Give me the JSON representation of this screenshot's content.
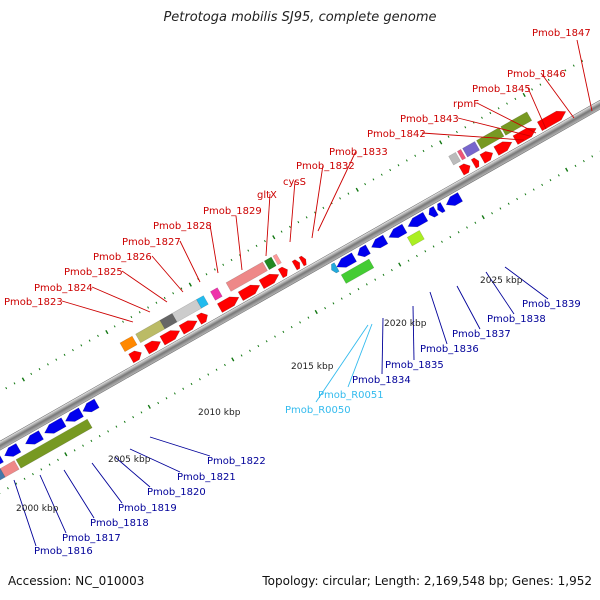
{
  "title": "Petrotoga mobilis SJ95, complete genome",
  "accession": "Accession: NC_010003",
  "summary": "Topology: circular; Length: 2,169,548 bp; Genes: 1,952",
  "colors": {
    "label_red": "#cc0000",
    "label_blue": "#000099",
    "label_cyan": "#33bbee",
    "forward_gene": "#ff0000",
    "reverse_gene": "#0000ee",
    "rna_gene": "#22aadd"
  },
  "scale_labels": [
    "2000 kbp",
    "2005 kbp",
    "2010 kbp",
    "2015 kbp",
    "2020 kbp",
    "2025 kbp"
  ],
  "top_labels": [
    "Pmob_1823",
    "Pmob_1824",
    "Pmob_1825",
    "Pmob_1826",
    "Pmob_1827",
    "Pmob_1828",
    "Pmob_1829",
    "gltX",
    "cysS",
    "Pmob_1832",
    "Pmob_1833",
    "Pmob_1842",
    "Pmob_1843",
    "rpmF",
    "Pmob_1845",
    "Pmob_1846",
    "Pmob_1847"
  ],
  "bottom_labels": [
    "Pmob_1816",
    "Pmob_1817",
    "Pmob_1818",
    "Pmob_1819",
    "Pmob_1820",
    "Pmob_1821",
    "Pmob_1822",
    "Pmob_R0050",
    "Pmob_R0051",
    "Pmob_1834",
    "Pmob_1835",
    "Pmob_1836",
    "Pmob_1837",
    "Pmob_1838",
    "Pmob_1839"
  ]
}
